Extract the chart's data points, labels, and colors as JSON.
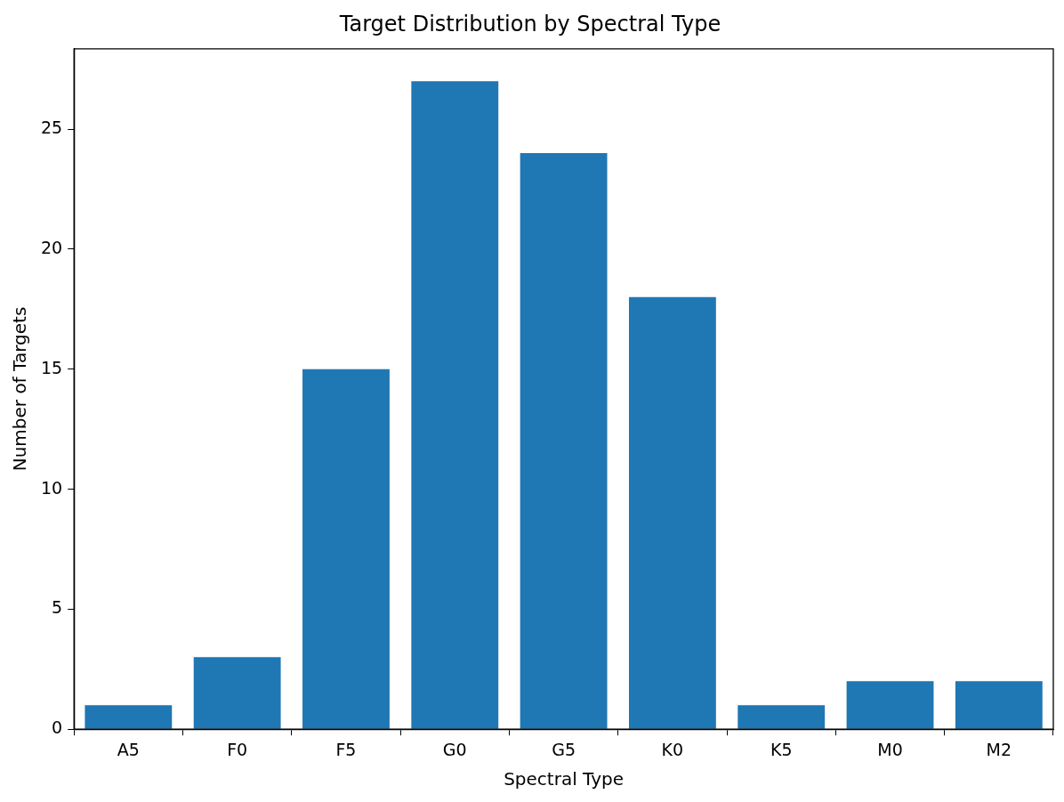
{
  "chart_data": {
    "type": "bar",
    "title": "Target Distribution by Spectral Type",
    "xlabel": "Spectral Type",
    "ylabel": "Number of Targets",
    "categories": [
      "A5",
      "F0",
      "F5",
      "G0",
      "G5",
      "K0",
      "K5",
      "M0",
      "M2"
    ],
    "values": [
      1,
      3,
      15,
      27,
      24,
      18,
      1,
      2,
      2
    ],
    "color": "#1f77b4",
    "ylim": [
      0,
      28.35
    ],
    "yticks": [
      0,
      5,
      10,
      15,
      20,
      25
    ],
    "grid": false,
    "legend": false
  }
}
